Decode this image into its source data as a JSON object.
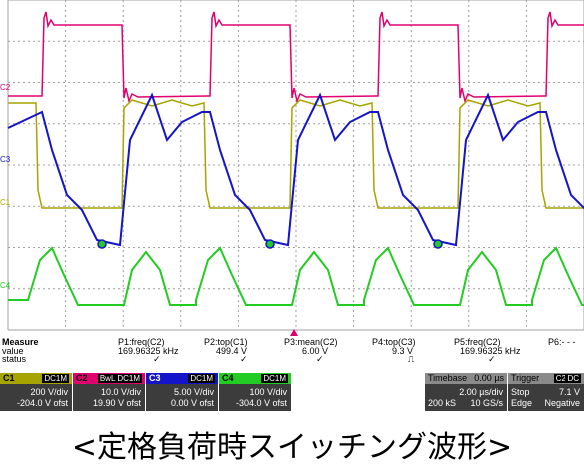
{
  "channels": [
    {
      "id": "C1",
      "tag": "DC1M",
      "color": "#a7a400",
      "vdiv": "200 V/div",
      "offset": "-204.0 V ofst"
    },
    {
      "id": "C2",
      "tag": "BwL DC1M",
      "color": "#e0006e",
      "vdiv": "10.0 V/div",
      "offset": "19.90 V ofst"
    },
    {
      "id": "C3",
      "tag": "DC1M",
      "color": "#1414c8",
      "vdiv": "5.00 V/div",
      "offset": "0.00 V ofst"
    },
    {
      "id": "C4",
      "tag": "DC1M",
      "color": "#22cc22",
      "vdiv": "100 V/div",
      "offset": "-304.0 V ofst"
    }
  ],
  "trace_labels": [
    "C2",
    "C3",
    "C1",
    "C4"
  ],
  "measure": {
    "title": "Measure",
    "row_labels": [
      "value",
      "status"
    ],
    "params": [
      {
        "name": "P1:freq(C2)",
        "value": "169.96325 kHz",
        "status": "✓"
      },
      {
        "name": "P2:top(C1)",
        "value": "499.4 V",
        "status": "✓"
      },
      {
        "name": "P3:mean(C2)",
        "value": "6.00 V",
        "status": "✓"
      },
      {
        "name": "P4:top(C3)",
        "value": "9.3 V",
        "status": "⎍"
      },
      {
        "name": "P5:freq(C2)",
        "value": "169.96325 kHz",
        "status": "✓"
      },
      {
        "name": "P6:- - -",
        "value": "",
        "status": ""
      }
    ]
  },
  "timebase": {
    "label": "Timebase",
    "delay": "0.00 µs",
    "per_div": "2.00 µs/div",
    "samples": "200 kS",
    "rate": "10 GS/s"
  },
  "trigger": {
    "label": "Trigger",
    "chan": "C2",
    "coupling": "DC",
    "level": "7.1 V",
    "mode": "Stop",
    "type": "Edge",
    "slope": "Negative"
  },
  "caption": "<定格負荷時スイッチング波形>"
}
